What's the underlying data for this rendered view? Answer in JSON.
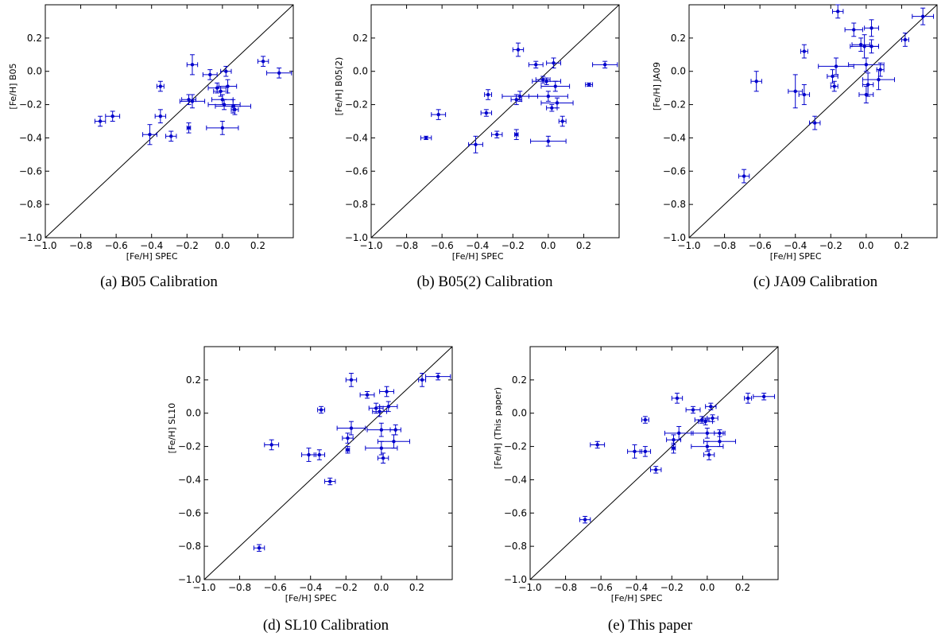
{
  "chart_data": [
    {
      "type": "scatter",
      "caption": "(a) B05 Calibration",
      "xlabel": "[Fe/H] SPEC",
      "ylabel": "[Fe/H] B05",
      "xlim": [
        -1.0,
        0.4
      ],
      "ylim": [
        -1.0,
        0.4
      ],
      "x_ticks": [
        "−1.0",
        "−0.8",
        "−0.6",
        "−0.4",
        "−0.2",
        "0.0",
        "0.2"
      ],
      "y_ticks": [
        "−1.0",
        "−0.8",
        "−0.6",
        "−0.4",
        "−0.2",
        "0.0",
        "0.2"
      ],
      "identity_line": true,
      "points": [
        {
          "x": -0.69,
          "y": -0.3,
          "xerr": 0.03,
          "yerr": 0.03
        },
        {
          "x": -0.62,
          "y": -0.27,
          "xerr": 0.04,
          "yerr": 0.03
        },
        {
          "x": -0.41,
          "y": -0.38,
          "xerr": 0.04,
          "yerr": 0.06
        },
        {
          "x": -0.35,
          "y": -0.27,
          "xerr": 0.03,
          "yerr": 0.04
        },
        {
          "x": -0.35,
          "y": -0.09,
          "xerr": 0.02,
          "yerr": 0.03
        },
        {
          "x": -0.29,
          "y": -0.39,
          "xerr": 0.03,
          "yerr": 0.03
        },
        {
          "x": -0.19,
          "y": -0.34,
          "xerr": 0.01,
          "yerr": 0.03
        },
        {
          "x": -0.17,
          "y": 0.04,
          "xerr": 0.03,
          "yerr": 0.06
        },
        {
          "x": -0.17,
          "y": -0.18,
          "xerr": 0.07,
          "yerr": 0.04
        },
        {
          "x": -0.19,
          "y": -0.17,
          "xerr": 0.04,
          "yerr": 0.03
        },
        {
          "x": -0.07,
          "y": -0.02,
          "xerr": 0.04,
          "yerr": 0.03
        },
        {
          "x": -0.03,
          "y": -0.1,
          "xerr": 0.05,
          "yerr": 0.03
        },
        {
          "x": -0.01,
          "y": -0.12,
          "xerr": 0.04,
          "yerr": 0.03
        },
        {
          "x": 0.02,
          "y": 0.0,
          "xerr": 0.03,
          "yerr": 0.03
        },
        {
          "x": 0.03,
          "y": -0.09,
          "xerr": 0.05,
          "yerr": 0.04
        },
        {
          "x": 0.0,
          "y": -0.17,
          "xerr": 0.06,
          "yerr": 0.03
        },
        {
          "x": 0.01,
          "y": -0.2,
          "xerr": 0.09,
          "yerr": 0.03
        },
        {
          "x": 0.06,
          "y": -0.21,
          "xerr": 0.1,
          "yerr": 0.04
        },
        {
          "x": 0.07,
          "y": -0.23,
          "xerr": 0.02,
          "yerr": 0.03
        },
        {
          "x": 0.0,
          "y": -0.34,
          "xerr": 0.09,
          "yerr": 0.04
        },
        {
          "x": 0.23,
          "y": 0.06,
          "xerr": 0.03,
          "yerr": 0.03
        },
        {
          "x": 0.32,
          "y": -0.01,
          "xerr": 0.07,
          "yerr": 0.03
        }
      ]
    },
    {
      "type": "scatter",
      "caption": "(b) B05(2) Calibration",
      "xlabel": "[Fe/H] SPEC",
      "ylabel": "[Fe/H] B05(2)",
      "xlim": [
        -1.0,
        0.4
      ],
      "ylim": [
        -1.0,
        0.4
      ],
      "x_ticks": [
        "−1.0",
        "−0.8",
        "−0.6",
        "−0.4",
        "−0.2",
        "0.0",
        "0.2"
      ],
      "y_ticks": [
        "−1.0",
        "−0.8",
        "−0.6",
        "−0.4",
        "−0.2",
        "0.0",
        "0.2"
      ],
      "identity_line": true,
      "points": [
        {
          "x": -0.69,
          "y": -0.4,
          "xerr": 0.03,
          "yerr": 0.01
        },
        {
          "x": -0.62,
          "y": -0.26,
          "xerr": 0.04,
          "yerr": 0.03
        },
        {
          "x": -0.41,
          "y": -0.44,
          "xerr": 0.04,
          "yerr": 0.05
        },
        {
          "x": -0.35,
          "y": -0.25,
          "xerr": 0.03,
          "yerr": 0.02
        },
        {
          "x": -0.34,
          "y": -0.14,
          "xerr": 0.02,
          "yerr": 0.03
        },
        {
          "x": -0.29,
          "y": -0.38,
          "xerr": 0.03,
          "yerr": 0.02
        },
        {
          "x": -0.18,
          "y": -0.38,
          "xerr": 0.01,
          "yerr": 0.03
        },
        {
          "x": -0.17,
          "y": 0.13,
          "xerr": 0.03,
          "yerr": 0.04
        },
        {
          "x": -0.16,
          "y": -0.15,
          "xerr": 0.1,
          "yerr": 0.03
        },
        {
          "x": -0.18,
          "y": -0.17,
          "xerr": 0.03,
          "yerr": 0.03
        },
        {
          "x": -0.07,
          "y": 0.04,
          "xerr": 0.04,
          "yerr": 0.02
        },
        {
          "x": -0.03,
          "y": -0.05,
          "xerr": 0.04,
          "yerr": 0.02
        },
        {
          "x": -0.01,
          "y": -0.06,
          "xerr": 0.08,
          "yerr": 0.02
        },
        {
          "x": 0.03,
          "y": 0.05,
          "xerr": 0.04,
          "yerr": 0.03
        },
        {
          "x": 0.04,
          "y": -0.09,
          "xerr": 0.08,
          "yerr": 0.03
        },
        {
          "x": 0.0,
          "y": -0.15,
          "xerr": 0.11,
          "yerr": 0.03
        },
        {
          "x": 0.02,
          "y": -0.22,
          "xerr": 0.03,
          "yerr": 0.02
        },
        {
          "x": 0.05,
          "y": -0.19,
          "xerr": 0.09,
          "yerr": 0.03
        },
        {
          "x": 0.08,
          "y": -0.3,
          "xerr": 0.02,
          "yerr": 0.03
        },
        {
          "x": 0.0,
          "y": -0.42,
          "xerr": 0.1,
          "yerr": 0.03
        },
        {
          "x": 0.23,
          "y": -0.08,
          "xerr": 0.02,
          "yerr": 0.01
        },
        {
          "x": 0.32,
          "y": 0.04,
          "xerr": 0.07,
          "yerr": 0.02
        }
      ]
    },
    {
      "type": "scatter",
      "caption": "(c) JA09 Calibration",
      "xlabel": "[Fe/H] SPEC",
      "ylabel": "[Fe/H] JA09",
      "xlim": [
        -1.0,
        0.4
      ],
      "ylim": [
        -1.0,
        0.4
      ],
      "x_ticks": [
        "−1.0",
        "−0.8",
        "−0.6",
        "−0.4",
        "−0.2",
        "0.0",
        "0.2"
      ],
      "y_ticks": [
        "−1.0",
        "−0.8",
        "−0.6",
        "−0.4",
        "−0.2",
        "0.0",
        "0.2"
      ],
      "identity_line": true,
      "points": [
        {
          "x": -0.69,
          "y": -0.63,
          "xerr": 0.03,
          "yerr": 0.04
        },
        {
          "x": -0.62,
          "y": -0.06,
          "xerr": 0.03,
          "yerr": 0.06
        },
        {
          "x": -0.4,
          "y": -0.12,
          "xerr": 0.04,
          "yerr": 0.1
        },
        {
          "x": -0.35,
          "y": -0.14,
          "xerr": 0.03,
          "yerr": 0.06
        },
        {
          "x": -0.35,
          "y": 0.12,
          "xerr": 0.02,
          "yerr": 0.04
        },
        {
          "x": -0.29,
          "y": -0.31,
          "xerr": 0.03,
          "yerr": 0.04
        },
        {
          "x": -0.19,
          "y": -0.03,
          "xerr": 0.03,
          "yerr": 0.04
        },
        {
          "x": -0.18,
          "y": -0.09,
          "xerr": 0.02,
          "yerr": 0.03
        },
        {
          "x": -0.16,
          "y": 0.36,
          "xerr": 0.03,
          "yerr": 0.04
        },
        {
          "x": -0.17,
          "y": 0.03,
          "xerr": 0.1,
          "yerr": 0.05
        },
        {
          "x": -0.07,
          "y": 0.25,
          "xerr": 0.05,
          "yerr": 0.04
        },
        {
          "x": -0.03,
          "y": 0.16,
          "xerr": 0.05,
          "yerr": 0.04
        },
        {
          "x": -0.01,
          "y": 0.15,
          "xerr": 0.08,
          "yerr": 0.07
        },
        {
          "x": 0.03,
          "y": 0.26,
          "xerr": 0.04,
          "yerr": 0.05
        },
        {
          "x": 0.03,
          "y": 0.15,
          "xerr": 0.04,
          "yerr": 0.04
        },
        {
          "x": 0.0,
          "y": 0.04,
          "xerr": 0.1,
          "yerr": 0.04
        },
        {
          "x": 0.01,
          "y": -0.08,
          "xerr": 0.03,
          "yerr": 0.07
        },
        {
          "x": 0.07,
          "y": -0.05,
          "xerr": 0.09,
          "yerr": 0.06
        },
        {
          "x": 0.08,
          "y": 0.01,
          "xerr": 0.02,
          "yerr": 0.04
        },
        {
          "x": 0.0,
          "y": -0.14,
          "xerr": 0.04,
          "yerr": 0.05
        },
        {
          "x": 0.22,
          "y": 0.19,
          "xerr": 0.02,
          "yerr": 0.04
        },
        {
          "x": 0.32,
          "y": 0.33,
          "xerr": 0.06,
          "yerr": 0.05
        }
      ]
    },
    {
      "type": "scatter",
      "caption": "(d) SL10 Calibration",
      "xlabel": "[Fe/H] SPEC",
      "ylabel": "[Fe/H] SL10",
      "xlim": [
        -1.0,
        0.4
      ],
      "ylim": [
        -1.0,
        0.4
      ],
      "x_ticks": [
        "−1.0",
        "−0.8",
        "−0.6",
        "−0.4",
        "−0.2",
        "0.0",
        "0.2"
      ],
      "y_ticks": [
        "−1.0",
        "−0.8",
        "−0.6",
        "−0.4",
        "−0.2",
        "0.0",
        "0.2"
      ],
      "identity_line": true,
      "points": [
        {
          "x": -0.69,
          "y": -0.81,
          "xerr": 0.03,
          "yerr": 0.02
        },
        {
          "x": -0.62,
          "y": -0.19,
          "xerr": 0.04,
          "yerr": 0.03
        },
        {
          "x": -0.41,
          "y": -0.25,
          "xerr": 0.04,
          "yerr": 0.04
        },
        {
          "x": -0.35,
          "y": -0.25,
          "xerr": 0.03,
          "yerr": 0.03
        },
        {
          "x": -0.34,
          "y": 0.02,
          "xerr": 0.02,
          "yerr": 0.02
        },
        {
          "x": -0.29,
          "y": -0.41,
          "xerr": 0.03,
          "yerr": 0.02
        },
        {
          "x": -0.19,
          "y": -0.22,
          "xerr": 0.01,
          "yerr": 0.02
        },
        {
          "x": -0.17,
          "y": 0.2,
          "xerr": 0.03,
          "yerr": 0.04
        },
        {
          "x": -0.17,
          "y": -0.09,
          "xerr": 0.08,
          "yerr": 0.04
        },
        {
          "x": -0.19,
          "y": -0.15,
          "xerr": 0.03,
          "yerr": 0.03
        },
        {
          "x": -0.08,
          "y": 0.11,
          "xerr": 0.04,
          "yerr": 0.02
        },
        {
          "x": -0.03,
          "y": 0.03,
          "xerr": 0.04,
          "yerr": 0.03
        },
        {
          "x": -0.01,
          "y": 0.01,
          "xerr": 0.04,
          "yerr": 0.03
        },
        {
          "x": 0.03,
          "y": 0.13,
          "xerr": 0.04,
          "yerr": 0.03
        },
        {
          "x": 0.04,
          "y": 0.04,
          "xerr": 0.05,
          "yerr": 0.03
        },
        {
          "x": 0.0,
          "y": -0.1,
          "xerr": 0.08,
          "yerr": 0.04
        },
        {
          "x": 0.01,
          "y": -0.27,
          "xerr": 0.03,
          "yerr": 0.03
        },
        {
          "x": 0.07,
          "y": -0.17,
          "xerr": 0.09,
          "yerr": 0.04
        },
        {
          "x": 0.08,
          "y": -0.1,
          "xerr": 0.03,
          "yerr": 0.03
        },
        {
          "x": 0.0,
          "y": -0.21,
          "xerr": 0.09,
          "yerr": 0.04
        },
        {
          "x": 0.23,
          "y": 0.2,
          "xerr": 0.02,
          "yerr": 0.04
        },
        {
          "x": 0.32,
          "y": 0.22,
          "xerr": 0.07,
          "yerr": 0.02
        }
      ]
    },
    {
      "type": "scatter",
      "caption": "(e) This paper",
      "xlabel": "[Fe/H] SPEC",
      "ylabel": "[Fe/H] (This paper)",
      "xlim": [
        -1.0,
        0.4
      ],
      "ylim": [
        -1.0,
        0.4
      ],
      "x_ticks": [
        "−1.0",
        "−0.8",
        "−0.6",
        "−0.4",
        "−0.2",
        "0.0",
        "0.2"
      ],
      "y_ticks": [
        "−1.0",
        "−0.8",
        "−0.6",
        "−0.4",
        "−0.2",
        "0.0",
        "0.2"
      ],
      "identity_line": true,
      "points": [
        {
          "x": -0.69,
          "y": -0.64,
          "xerr": 0.03,
          "yerr": 0.02
        },
        {
          "x": -0.62,
          "y": -0.19,
          "xerr": 0.04,
          "yerr": 0.02
        },
        {
          "x": -0.41,
          "y": -0.23,
          "xerr": 0.04,
          "yerr": 0.04
        },
        {
          "x": -0.35,
          "y": -0.23,
          "xerr": 0.03,
          "yerr": 0.03
        },
        {
          "x": -0.35,
          "y": -0.04,
          "xerr": 0.02,
          "yerr": 0.02
        },
        {
          "x": -0.29,
          "y": -0.34,
          "xerr": 0.03,
          "yerr": 0.02
        },
        {
          "x": -0.19,
          "y": -0.21,
          "xerr": 0.01,
          "yerr": 0.03
        },
        {
          "x": -0.17,
          "y": 0.09,
          "xerr": 0.03,
          "yerr": 0.03
        },
        {
          "x": -0.16,
          "y": -0.12,
          "xerr": 0.08,
          "yerr": 0.04
        },
        {
          "x": -0.19,
          "y": -0.16,
          "xerr": 0.04,
          "yerr": 0.03
        },
        {
          "x": -0.08,
          "y": 0.02,
          "xerr": 0.04,
          "yerr": 0.02
        },
        {
          "x": -0.03,
          "y": -0.04,
          "xerr": 0.04,
          "yerr": 0.02
        },
        {
          "x": -0.01,
          "y": -0.05,
          "xerr": 0.04,
          "yerr": 0.02
        },
        {
          "x": 0.03,
          "y": -0.03,
          "xerr": 0.03,
          "yerr": 0.02
        },
        {
          "x": 0.02,
          "y": 0.04,
          "xerr": 0.03,
          "yerr": 0.02
        },
        {
          "x": 0.0,
          "y": -0.12,
          "xerr": 0.09,
          "yerr": 0.03
        },
        {
          "x": 0.01,
          "y": -0.25,
          "xerr": 0.03,
          "yerr": 0.03
        },
        {
          "x": 0.07,
          "y": -0.17,
          "xerr": 0.09,
          "yerr": 0.03
        },
        {
          "x": 0.07,
          "y": -0.12,
          "xerr": 0.03,
          "yerr": 0.02
        },
        {
          "x": 0.0,
          "y": -0.2,
          "xerr": 0.09,
          "yerr": 0.03
        },
        {
          "x": 0.23,
          "y": 0.09,
          "xerr": 0.02,
          "yerr": 0.03
        },
        {
          "x": 0.32,
          "y": 0.1,
          "xerr": 0.06,
          "yerr": 0.02
        }
      ]
    }
  ]
}
